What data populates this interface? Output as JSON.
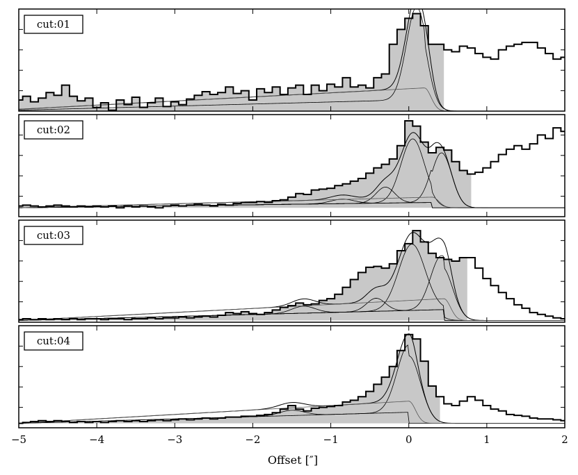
{
  "chart_data": {
    "type": "line",
    "xlabel": "Offset [″]",
    "xlim": [
      -5,
      2
    ],
    "x_ticks": [
      -5,
      -4,
      -3,
      -2,
      -1,
      0,
      1,
      2
    ],
    "x_tick_labels": [
      "−5",
      "−4",
      "−3",
      "−2",
      "−1",
      "0",
      "1",
      "2"
    ],
    "grid": false,
    "colors": {
      "fill": "#c8c8c8",
      "line": "#000000"
    },
    "panels": [
      {
        "label": "cut:01",
        "ylim": [
          0,
          1.1
        ],
        "baseline": {
          "x0": -5,
          "y0": 0.02,
          "x1": 0.2,
          "y1": 0.25
        },
        "gaussians": [
          {
            "amp": 1.0,
            "mu": 0.1,
            "sigma": 0.13
          }
        ],
        "shade_xmax": 0.45,
        "observed": [
          [
            -5.0,
            0.12
          ],
          [
            -4.9,
            0.16
          ],
          [
            -4.8,
            0.1
          ],
          [
            -4.7,
            0.14
          ],
          [
            -4.6,
            0.2
          ],
          [
            -4.5,
            0.17
          ],
          [
            -4.4,
            0.28
          ],
          [
            -4.3,
            0.16
          ],
          [
            -4.2,
            0.11
          ],
          [
            -4.1,
            0.14
          ],
          [
            -4.0,
            0.04
          ],
          [
            -3.9,
            0.09
          ],
          [
            -3.8,
            0.01
          ],
          [
            -3.7,
            0.12
          ],
          [
            -3.6,
            0.07
          ],
          [
            -3.5,
            0.15
          ],
          [
            -3.4,
            0.04
          ],
          [
            -3.3,
            0.09
          ],
          [
            -3.2,
            0.14
          ],
          [
            -3.1,
            0.05
          ],
          [
            -3.0,
            0.1
          ],
          [
            -2.9,
            0.07
          ],
          [
            -2.8,
            0.13
          ],
          [
            -2.7,
            0.17
          ],
          [
            -2.6,
            0.21
          ],
          [
            -2.5,
            0.18
          ],
          [
            -2.4,
            0.2
          ],
          [
            -2.3,
            0.26
          ],
          [
            -2.2,
            0.19
          ],
          [
            -2.1,
            0.22
          ],
          [
            -2.0,
            0.12
          ],
          [
            -1.9,
            0.24
          ],
          [
            -1.8,
            0.2
          ],
          [
            -1.7,
            0.26
          ],
          [
            -1.6,
            0.18
          ],
          [
            -1.5,
            0.25
          ],
          [
            -1.4,
            0.28
          ],
          [
            -1.3,
            0.18
          ],
          [
            -1.2,
            0.28
          ],
          [
            -1.1,
            0.22
          ],
          [
            -1.0,
            0.29
          ],
          [
            -0.9,
            0.26
          ],
          [
            -0.8,
            0.36
          ],
          [
            -0.7,
            0.26
          ],
          [
            -0.6,
            0.28
          ],
          [
            -0.5,
            0.25
          ],
          [
            -0.4,
            0.36
          ],
          [
            -0.3,
            0.4
          ],
          [
            -0.2,
            0.72
          ],
          [
            -0.1,
            0.88
          ],
          [
            0.0,
            1.0
          ],
          [
            0.1,
            1.05
          ],
          [
            0.2,
            0.92
          ],
          [
            0.3,
            0.72
          ],
          [
            0.4,
            0.72
          ],
          [
            0.5,
            0.66
          ],
          [
            0.6,
            0.64
          ],
          [
            0.7,
            0.7
          ],
          [
            0.8,
            0.68
          ],
          [
            0.9,
            0.62
          ],
          [
            1.0,
            0.58
          ],
          [
            1.1,
            0.56
          ],
          [
            1.2,
            0.66
          ],
          [
            1.3,
            0.7
          ],
          [
            1.4,
            0.72
          ],
          [
            1.5,
            0.74
          ],
          [
            1.6,
            0.74
          ],
          [
            1.7,
            0.68
          ],
          [
            1.8,
            0.62
          ],
          [
            1.9,
            0.56
          ],
          [
            2.0,
            0.58
          ]
        ]
      },
      {
        "label": "cut:02",
        "ylim": [
          -0.1,
          1.05
        ],
        "baseline": {
          "x0": -5,
          "y0": 0.0,
          "x1": 0.3,
          "y1": 0.12
        },
        "gaussians": [
          {
            "amp": 0.72,
            "mu": 0.05,
            "sigma": 0.15
          },
          {
            "amp": 0.62,
            "mu": 0.42,
            "sigma": 0.13
          },
          {
            "amp": 0.18,
            "mu": -0.3,
            "sigma": 0.12
          },
          {
            "amp": 0.05,
            "mu": -0.85,
            "sigma": 0.15
          }
        ],
        "shade_xmax": 0.8,
        "observed": [
          [
            -5.0,
            0.02
          ],
          [
            -4.9,
            0.03
          ],
          [
            -4.8,
            0.02
          ],
          [
            -4.7,
            0.01
          ],
          [
            -4.6,
            0.02
          ],
          [
            -4.5,
            0.03
          ],
          [
            -4.4,
            0.02
          ],
          [
            -4.3,
            0.01
          ],
          [
            -4.2,
            0.02
          ],
          [
            -4.1,
            0.01
          ],
          [
            -4.0,
            0.02
          ],
          [
            -3.9,
            0.01
          ],
          [
            -3.8,
            0.02
          ],
          [
            -3.7,
            0.0
          ],
          [
            -3.6,
            0.02
          ],
          [
            -3.5,
            0.01
          ],
          [
            -3.4,
            0.02
          ],
          [
            -3.3,
            0.01
          ],
          [
            -3.2,
            0.0
          ],
          [
            -3.1,
            0.02
          ],
          [
            -3.0,
            0.03
          ],
          [
            -2.9,
            0.02
          ],
          [
            -2.8,
            0.03
          ],
          [
            -2.7,
            0.04
          ],
          [
            -2.6,
            0.03
          ],
          [
            -2.5,
            0.02
          ],
          [
            -2.4,
            0.04
          ],
          [
            -2.3,
            0.03
          ],
          [
            -2.2,
            0.05
          ],
          [
            -2.1,
            0.06
          ],
          [
            -2.0,
            0.06
          ],
          [
            -1.9,
            0.07
          ],
          [
            -1.8,
            0.06
          ],
          [
            -1.7,
            0.08
          ],
          [
            -1.6,
            0.09
          ],
          [
            -1.5,
            0.12
          ],
          [
            -1.4,
            0.16
          ],
          [
            -1.3,
            0.15
          ],
          [
            -1.2,
            0.2
          ],
          [
            -1.1,
            0.21
          ],
          [
            -1.0,
            0.22
          ],
          [
            -0.9,
            0.25
          ],
          [
            -0.8,
            0.27
          ],
          [
            -0.7,
            0.3
          ],
          [
            -0.6,
            0.33
          ],
          [
            -0.5,
            0.39
          ],
          [
            -0.4,
            0.45
          ],
          [
            -0.3,
            0.49
          ],
          [
            -0.2,
            0.55
          ],
          [
            -0.1,
            0.7
          ],
          [
            0.0,
            0.98
          ],
          [
            0.1,
            0.92
          ],
          [
            0.2,
            0.74
          ],
          [
            0.3,
            0.62
          ],
          [
            0.4,
            0.68
          ],
          [
            0.5,
            0.65
          ],
          [
            0.6,
            0.52
          ],
          [
            0.7,
            0.42
          ],
          [
            0.8,
            0.38
          ],
          [
            0.9,
            0.4
          ],
          [
            1.0,
            0.45
          ],
          [
            1.1,
            0.52
          ],
          [
            1.2,
            0.6
          ],
          [
            1.3,
            0.66
          ],
          [
            1.4,
            0.7
          ],
          [
            1.5,
            0.66
          ],
          [
            1.6,
            0.72
          ],
          [
            1.7,
            0.82
          ],
          [
            1.8,
            0.78
          ],
          [
            1.9,
            0.9
          ],
          [
            2.0,
            0.86
          ]
        ]
      },
      {
        "label": "cut:03",
        "ylim": [
          -0.02,
          1.15
        ],
        "baseline": {
          "x0": -5,
          "y0": 0.0,
          "x1": 0.45,
          "y1": 0.25
        },
        "gaussians": [
          {
            "amp": 0.76,
            "mu": 0.04,
            "sigma": 0.17
          },
          {
            "amp": 0.62,
            "mu": 0.42,
            "sigma": 0.14
          },
          {
            "amp": 0.15,
            "mu": -0.42,
            "sigma": 0.12
          },
          {
            "amp": 0.08,
            "mu": -1.35,
            "sigma": 0.15
          }
        ],
        "shade_xmax": 0.75,
        "observed": [
          [
            -5.0,
            0.01
          ],
          [
            -4.9,
            0.02
          ],
          [
            -4.8,
            0.01
          ],
          [
            -4.7,
            0.02
          ],
          [
            -4.6,
            0.01
          ],
          [
            -4.5,
            0.02
          ],
          [
            -4.4,
            0.01
          ],
          [
            -4.3,
            0.02
          ],
          [
            -4.2,
            0.01
          ],
          [
            -4.1,
            0.02
          ],
          [
            -4.0,
            0.02
          ],
          [
            -3.9,
            0.01
          ],
          [
            -3.8,
            0.02
          ],
          [
            -3.7,
            0.02
          ],
          [
            -3.6,
            0.01
          ],
          [
            -3.5,
            0.02
          ],
          [
            -3.4,
            0.02
          ],
          [
            -3.3,
            0.03
          ],
          [
            -3.2,
            0.02
          ],
          [
            -3.1,
            0.03
          ],
          [
            -3.0,
            0.03
          ],
          [
            -2.9,
            0.04
          ],
          [
            -2.8,
            0.03
          ],
          [
            -2.7,
            0.04
          ],
          [
            -2.6,
            0.05
          ],
          [
            -2.5,
            0.04
          ],
          [
            -2.4,
            0.06
          ],
          [
            -2.3,
            0.09
          ],
          [
            -2.2,
            0.08
          ],
          [
            -2.1,
            0.1
          ],
          [
            -2.0,
            0.08
          ],
          [
            -1.9,
            0.07
          ],
          [
            -1.8,
            0.09
          ],
          [
            -1.7,
            0.12
          ],
          [
            -1.6,
            0.15
          ],
          [
            -1.5,
            0.17
          ],
          [
            -1.4,
            0.2
          ],
          [
            -1.3,
            0.18
          ],
          [
            -1.2,
            0.19
          ],
          [
            -1.1,
            0.23
          ],
          [
            -1.0,
            0.25
          ],
          [
            -0.9,
            0.3
          ],
          [
            -0.8,
            0.38
          ],
          [
            -0.7,
            0.47
          ],
          [
            -0.6,
            0.55
          ],
          [
            -0.5,
            0.61
          ],
          [
            -0.4,
            0.62
          ],
          [
            -0.3,
            0.6
          ],
          [
            -0.2,
            0.65
          ],
          [
            -0.1,
            0.8
          ],
          [
            0.0,
            0.88
          ],
          [
            0.1,
            1.03
          ],
          [
            0.2,
            0.9
          ],
          [
            0.3,
            0.77
          ],
          [
            0.4,
            0.72
          ],
          [
            0.5,
            0.7
          ],
          [
            0.6,
            0.68
          ],
          [
            0.7,
            0.72
          ],
          [
            0.8,
            0.72
          ],
          [
            0.9,
            0.6
          ],
          [
            1.0,
            0.48
          ],
          [
            1.1,
            0.4
          ],
          [
            1.2,
            0.32
          ],
          [
            1.3,
            0.25
          ],
          [
            1.4,
            0.18
          ],
          [
            1.5,
            0.14
          ],
          [
            1.6,
            0.09
          ],
          [
            1.7,
            0.07
          ],
          [
            1.8,
            0.05
          ],
          [
            1.9,
            0.03
          ],
          [
            2.0,
            0.02
          ]
        ]
      },
      {
        "label": "cut:04",
        "ylim": [
          -0.05,
          1.1
        ],
        "baseline": {
          "x0": -5,
          "y0": 0.0,
          "x1": 0.0,
          "y1": 0.25
        },
        "gaussians": [
          {
            "amp": 0.76,
            "mu": 0.0,
            "sigma": 0.15
          },
          {
            "amp": 0.06,
            "mu": -1.5,
            "sigma": 0.16
          }
        ],
        "shade_xmax": 0.4,
        "observed": [
          [
            -5.0,
            0.0
          ],
          [
            -4.9,
            0.01
          ],
          [
            -4.8,
            0.02
          ],
          [
            -4.7,
            0.03
          ],
          [
            -4.6,
            0.02
          ],
          [
            -4.5,
            0.03
          ],
          [
            -4.4,
            0.02
          ],
          [
            -4.3,
            0.01
          ],
          [
            -4.2,
            0.02
          ],
          [
            -4.1,
            0.01
          ],
          [
            -4.0,
            0.02
          ],
          [
            -3.9,
            0.01
          ],
          [
            -3.8,
            0.02
          ],
          [
            -3.7,
            0.03
          ],
          [
            -3.6,
            0.02
          ],
          [
            -3.5,
            0.03
          ],
          [
            -3.4,
            0.02
          ],
          [
            -3.3,
            0.03
          ],
          [
            -3.2,
            0.04
          ],
          [
            -3.1,
            0.03
          ],
          [
            -3.0,
            0.04
          ],
          [
            -2.9,
            0.05
          ],
          [
            -2.8,
            0.04
          ],
          [
            -2.7,
            0.05
          ],
          [
            -2.6,
            0.06
          ],
          [
            -2.5,
            0.05
          ],
          [
            -2.4,
            0.06
          ],
          [
            -2.3,
            0.07
          ],
          [
            -2.2,
            0.07
          ],
          [
            -2.1,
            0.08
          ],
          [
            -2.0,
            0.08
          ],
          [
            -1.9,
            0.09
          ],
          [
            -1.8,
            0.1
          ],
          [
            -1.7,
            0.12
          ],
          [
            -1.6,
            0.16
          ],
          [
            -1.5,
            0.2
          ],
          [
            -1.4,
            0.16
          ],
          [
            -1.3,
            0.14
          ],
          [
            -1.2,
            0.17
          ],
          [
            -1.1,
            0.18
          ],
          [
            -1.0,
            0.19
          ],
          [
            -0.9,
            0.2
          ],
          [
            -0.8,
            0.24
          ],
          [
            -0.7,
            0.26
          ],
          [
            -0.6,
            0.3
          ],
          [
            -0.5,
            0.36
          ],
          [
            -0.4,
            0.44
          ],
          [
            -0.3,
            0.52
          ],
          [
            -0.2,
            0.64
          ],
          [
            -0.1,
            0.82
          ],
          [
            0.0,
            1.0
          ],
          [
            0.1,
            0.95
          ],
          [
            0.2,
            0.7
          ],
          [
            0.3,
            0.42
          ],
          [
            0.4,
            0.3
          ],
          [
            0.5,
            0.22
          ],
          [
            0.6,
            0.2
          ],
          [
            0.7,
            0.25
          ],
          [
            0.8,
            0.3
          ],
          [
            0.9,
            0.26
          ],
          [
            1.0,
            0.2
          ],
          [
            1.1,
            0.16
          ],
          [
            1.2,
            0.14
          ],
          [
            1.3,
            0.1
          ],
          [
            1.4,
            0.09
          ],
          [
            1.5,
            0.08
          ],
          [
            1.6,
            0.06
          ],
          [
            1.7,
            0.05
          ],
          [
            1.8,
            0.05
          ],
          [
            1.9,
            0.04
          ],
          [
            2.0,
            0.03
          ]
        ]
      }
    ]
  }
}
